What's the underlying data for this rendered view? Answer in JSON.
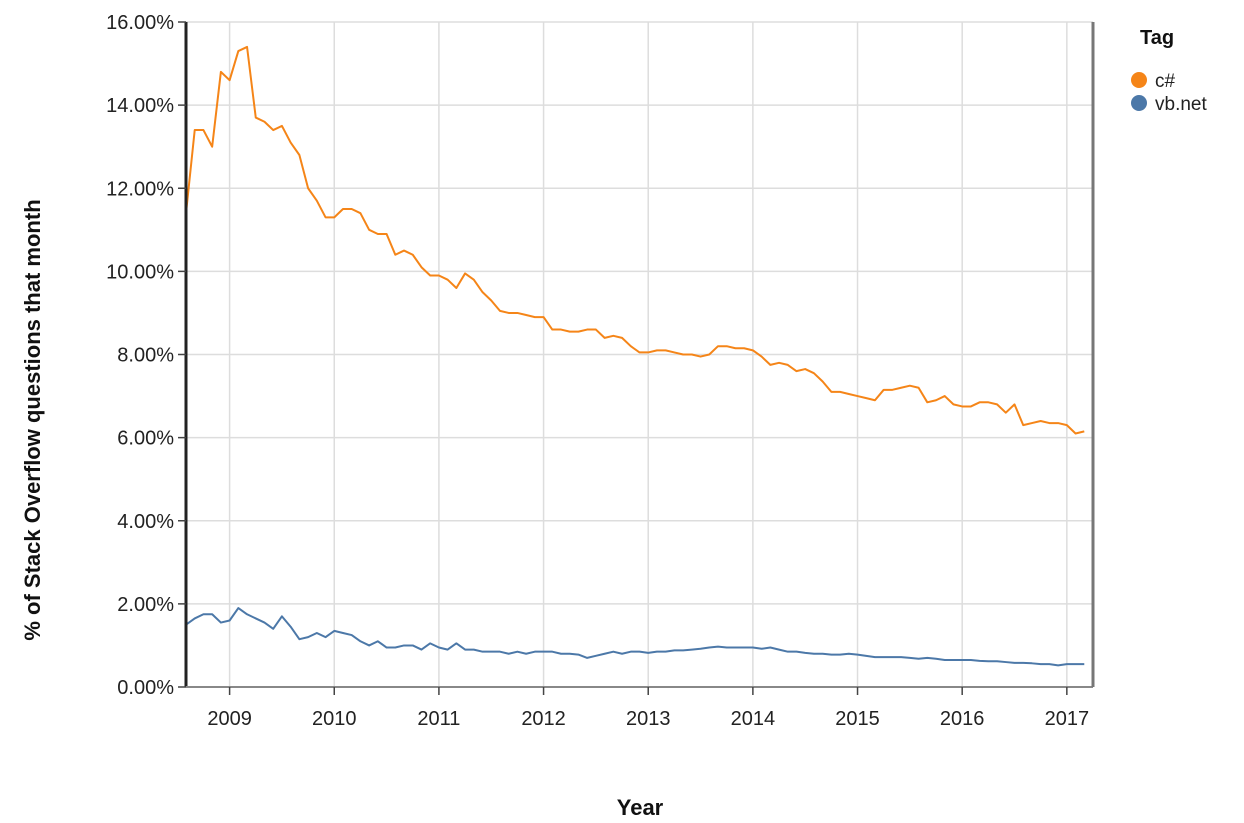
{
  "chart_data": {
    "type": "line",
    "xlabel": "Year",
    "ylabel": "% of Stack Overflow questions that month",
    "x_ticks": [
      "2009",
      "2010",
      "2011",
      "2012",
      "2013",
      "2014",
      "2015",
      "2016",
      "2017"
    ],
    "y_ticks": [
      "0.00%",
      "2.00%",
      "4.00%",
      "6.00%",
      "8.00%",
      "10.00%",
      "12.00%",
      "14.00%",
      "16.00%"
    ],
    "xlim": [
      "2008-08",
      "2017-04"
    ],
    "ylim": [
      0,
      16
    ],
    "grid": true,
    "legend": {
      "title": "Tag",
      "position": "top-right"
    },
    "series": [
      {
        "name": "c#",
        "color": "#f58518",
        "x": [
          "2008-08",
          "2008-09",
          "2008-10",
          "2008-11",
          "2008-12",
          "2009-01",
          "2009-02",
          "2009-03",
          "2009-04",
          "2009-05",
          "2009-06",
          "2009-07",
          "2009-08",
          "2009-09",
          "2009-10",
          "2009-11",
          "2009-12",
          "2010-01",
          "2010-02",
          "2010-03",
          "2010-04",
          "2010-05",
          "2010-06",
          "2010-07",
          "2010-08",
          "2010-09",
          "2010-10",
          "2010-11",
          "2010-12",
          "2011-01",
          "2011-02",
          "2011-03",
          "2011-04",
          "2011-05",
          "2011-06",
          "2011-07",
          "2011-08",
          "2011-09",
          "2011-10",
          "2011-11",
          "2011-12",
          "2012-01",
          "2012-02",
          "2012-03",
          "2012-04",
          "2012-05",
          "2012-06",
          "2012-07",
          "2012-08",
          "2012-09",
          "2012-10",
          "2012-11",
          "2012-12",
          "2013-01",
          "2013-02",
          "2013-03",
          "2013-04",
          "2013-05",
          "2013-06",
          "2013-07",
          "2013-08",
          "2013-09",
          "2013-10",
          "2013-11",
          "2013-12",
          "2014-01",
          "2014-02",
          "2014-03",
          "2014-04",
          "2014-05",
          "2014-06",
          "2014-07",
          "2014-08",
          "2014-09",
          "2014-10",
          "2014-11",
          "2014-12",
          "2015-01",
          "2015-02",
          "2015-03",
          "2015-04",
          "2015-05",
          "2015-06",
          "2015-07",
          "2015-08",
          "2015-09",
          "2015-10",
          "2015-11",
          "2015-12",
          "2016-01",
          "2016-02",
          "2016-03",
          "2016-04",
          "2016-05",
          "2016-06",
          "2016-07",
          "2016-08",
          "2016-09",
          "2016-10",
          "2016-11",
          "2016-12",
          "2017-01",
          "2017-02",
          "2017-03"
        ],
        "values": [
          11.4,
          13.4,
          13.4,
          13.0,
          14.8,
          14.6,
          15.3,
          15.4,
          13.7,
          13.6,
          13.4,
          13.5,
          13.1,
          12.8,
          12.0,
          11.7,
          11.3,
          11.3,
          11.5,
          11.5,
          11.4,
          11.0,
          10.9,
          10.9,
          10.4,
          10.5,
          10.4,
          10.1,
          9.9,
          9.9,
          9.8,
          9.6,
          9.95,
          9.8,
          9.5,
          9.3,
          9.05,
          9.0,
          9.0,
          8.95,
          8.9,
          8.9,
          8.6,
          8.6,
          8.55,
          8.55,
          8.6,
          8.6,
          8.4,
          8.45,
          8.4,
          8.2,
          8.05,
          8.05,
          8.1,
          8.1,
          8.05,
          8.0,
          8.0,
          7.95,
          8.0,
          8.2,
          8.2,
          8.15,
          8.15,
          8.1,
          7.95,
          7.75,
          7.8,
          7.75,
          7.6,
          7.65,
          7.55,
          7.35,
          7.1,
          7.1,
          7.05,
          7.0,
          6.95,
          6.9,
          7.15,
          7.15,
          7.2,
          7.25,
          7.2,
          6.85,
          6.9,
          7.0,
          6.8,
          6.75,
          6.75,
          6.85,
          6.85,
          6.8,
          6.6,
          6.8,
          6.3,
          6.35,
          6.4,
          6.35,
          6.35,
          6.3,
          6.1,
          6.15
        ]
      },
      {
        "name": "vb.net",
        "color": "#4c78a8",
        "x": [
          "2008-08",
          "2008-09",
          "2008-10",
          "2008-11",
          "2008-12",
          "2009-01",
          "2009-02",
          "2009-03",
          "2009-04",
          "2009-05",
          "2009-06",
          "2009-07",
          "2009-08",
          "2009-09",
          "2009-10",
          "2009-11",
          "2009-12",
          "2010-01",
          "2010-02",
          "2010-03",
          "2010-04",
          "2010-05",
          "2010-06",
          "2010-07",
          "2010-08",
          "2010-09",
          "2010-10",
          "2010-11",
          "2010-12",
          "2011-01",
          "2011-02",
          "2011-03",
          "2011-04",
          "2011-05",
          "2011-06",
          "2011-07",
          "2011-08",
          "2011-09",
          "2011-10",
          "2011-11",
          "2011-12",
          "2012-01",
          "2012-02",
          "2012-03",
          "2012-04",
          "2012-05",
          "2012-06",
          "2012-07",
          "2012-08",
          "2012-09",
          "2012-10",
          "2012-11",
          "2012-12",
          "2013-01",
          "2013-02",
          "2013-03",
          "2013-04",
          "2013-05",
          "2013-06",
          "2013-07",
          "2013-08",
          "2013-09",
          "2013-10",
          "2013-11",
          "2013-12",
          "2014-01",
          "2014-02",
          "2014-03",
          "2014-04",
          "2014-05",
          "2014-06",
          "2014-07",
          "2014-08",
          "2014-09",
          "2014-10",
          "2014-11",
          "2014-12",
          "2015-01",
          "2015-02",
          "2015-03",
          "2015-04",
          "2015-05",
          "2015-06",
          "2015-07",
          "2015-08",
          "2015-09",
          "2015-10",
          "2015-11",
          "2015-12",
          "2016-01",
          "2016-02",
          "2016-03",
          "2016-04",
          "2016-05",
          "2016-06",
          "2016-07",
          "2016-08",
          "2016-09",
          "2016-10",
          "2016-11",
          "2016-12",
          "2017-01",
          "2017-02",
          "2017-03"
        ],
        "values": [
          1.5,
          1.65,
          1.75,
          1.75,
          1.55,
          1.6,
          1.9,
          1.75,
          1.65,
          1.55,
          1.4,
          1.7,
          1.45,
          1.15,
          1.2,
          1.3,
          1.2,
          1.35,
          1.3,
          1.25,
          1.1,
          1.0,
          1.1,
          0.95,
          0.95,
          1.0,
          1.0,
          0.9,
          1.05,
          0.95,
          0.9,
          1.05,
          0.9,
          0.9,
          0.85,
          0.85,
          0.85,
          0.8,
          0.85,
          0.8,
          0.85,
          0.85,
          0.85,
          0.8,
          0.8,
          0.78,
          0.7,
          0.75,
          0.8,
          0.85,
          0.8,
          0.85,
          0.85,
          0.82,
          0.85,
          0.85,
          0.88,
          0.88,
          0.9,
          0.92,
          0.95,
          0.97,
          0.95,
          0.95,
          0.95,
          0.95,
          0.92,
          0.95,
          0.9,
          0.85,
          0.85,
          0.82,
          0.8,
          0.8,
          0.78,
          0.78,
          0.8,
          0.78,
          0.75,
          0.72,
          0.72,
          0.72,
          0.72,
          0.7,
          0.68,
          0.7,
          0.68,
          0.65,
          0.65,
          0.65,
          0.65,
          0.63,
          0.62,
          0.62,
          0.6,
          0.58,
          0.58,
          0.57,
          0.55,
          0.55,
          0.52,
          0.55,
          0.55,
          0.55
        ]
      }
    ]
  }
}
